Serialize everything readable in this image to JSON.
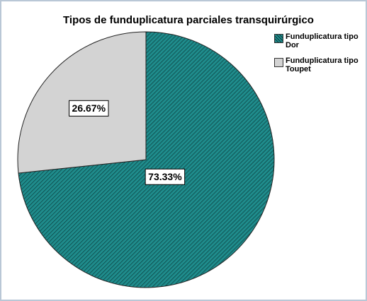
{
  "chart_data": {
    "type": "pie",
    "title": "Tipos de funduplicatura parciales transquirúrgico",
    "categories": [
      "Funduplicatura tipo Dor",
      "Funduplicatura tipo Toupet"
    ],
    "values": [
      73.33,
      26.67
    ],
    "value_labels": [
      "73.33%",
      "26.67%"
    ],
    "colors": [
      "#1f8c8c",
      "#d3d3d3"
    ],
    "hatch": [
      true,
      false
    ],
    "legend": "top-right"
  }
}
